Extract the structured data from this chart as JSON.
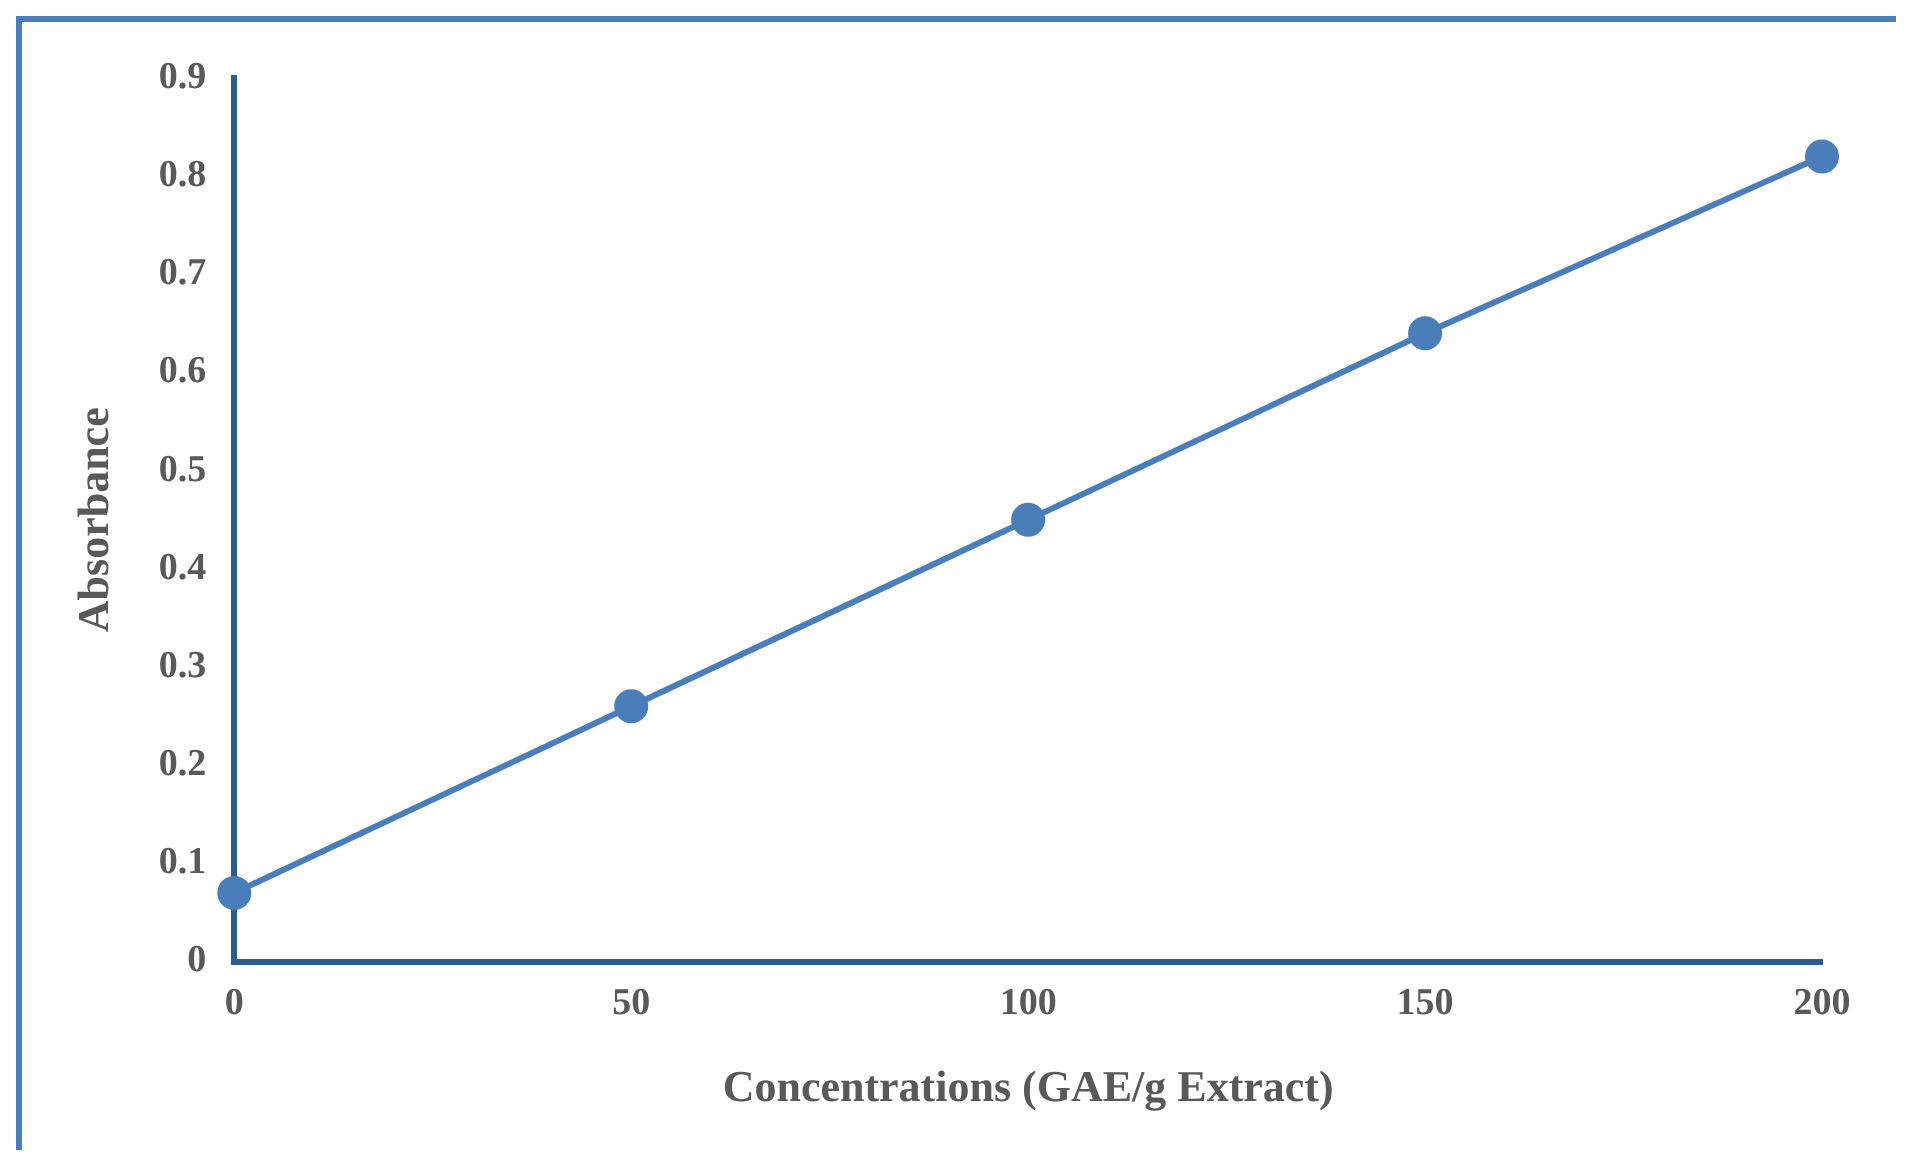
{
  "chart_data": {
    "type": "line",
    "xlabel": "Concentrations (GAE/g Extract)",
    "ylabel": "Absorbance",
    "x": [
      0,
      50,
      100,
      150,
      200
    ],
    "series": [
      {
        "color": "#4a7ebb",
        "values": [
          0.07,
          0.26,
          0.45,
          0.64,
          0.82
        ]
      }
    ],
    "xlim": [
      0,
      200
    ],
    "xticks": [
      0,
      50,
      100,
      150,
      200
    ],
    "ylim": [
      0,
      0.9
    ],
    "yticks": [
      0,
      0.1,
      0.2,
      0.3,
      0.4,
      0.5,
      0.6,
      0.7,
      0.8,
      0.9
    ],
    "grid": false,
    "legend": false,
    "marker": "circle",
    "line_style": "solid"
  }
}
